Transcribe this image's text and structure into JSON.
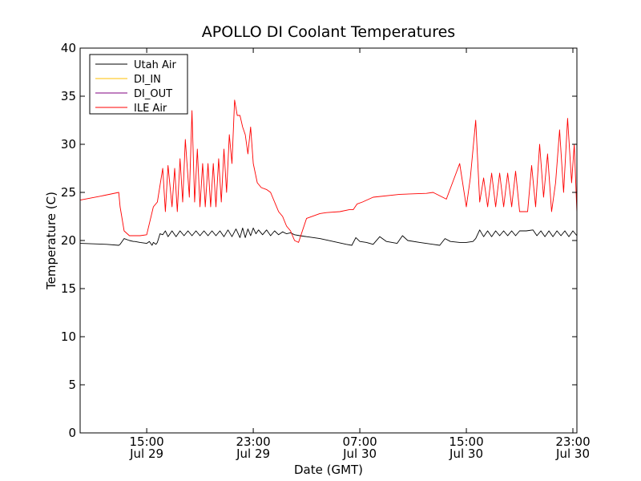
{
  "chart_data": {
    "type": "line",
    "title": "APOLLO DI Coolant Temperatures",
    "xlabel": "Date (GMT)",
    "ylabel": "Temperature (C)",
    "xunit": "hours since Jul 29 00:00 GMT",
    "xlim": [
      10.0,
      47.3
    ],
    "ylim": [
      0,
      40
    ],
    "yticks": [
      0,
      5,
      10,
      15,
      20,
      25,
      30,
      35,
      40
    ],
    "xticks": [
      {
        "value": 15,
        "time": "15:00",
        "date": "Jul 29"
      },
      {
        "value": 23,
        "time": "23:00",
        "date": "Jul 29"
      },
      {
        "value": 31,
        "time": "07:00",
        "date": "Jul 30"
      },
      {
        "value": 39,
        "time": "15:00",
        "date": "Jul 30"
      },
      {
        "value": 47,
        "time": "23:00",
        "date": "Jul 30"
      }
    ],
    "legend_position": "top-left",
    "series": [
      {
        "name": "Utah Air",
        "color": "#000000",
        "x": [
          10.0,
          12.0,
          12.9,
          13.0,
          13.3,
          13.7,
          14.0,
          14.1,
          14.5,
          15.0,
          15.2,
          15.4,
          15.5,
          15.7,
          15.8,
          16.0,
          16.2,
          16.4,
          16.6,
          16.9,
          17.2,
          17.5,
          17.8,
          18.1,
          18.4,
          18.7,
          19.0,
          19.3,
          19.6,
          19.9,
          20.2,
          20.5,
          20.8,
          21.1,
          21.4,
          21.7,
          22.0,
          22.2,
          22.4,
          22.6,
          22.8,
          23.0,
          23.2,
          23.4,
          23.7,
          24.0,
          24.3,
          24.6,
          24.9,
          25.2,
          25.5,
          25.8,
          26.1,
          26.5,
          27.0,
          28.0,
          29.0,
          30.0,
          30.4,
          30.7,
          31.0,
          31.5,
          32.0,
          32.5,
          33.0,
          33.8,
          34.2,
          34.6,
          35.5,
          36.5,
          37.0,
          37.4,
          37.8,
          38.5,
          39.0,
          39.5,
          39.7,
          40.0,
          40.3,
          40.6,
          40.9,
          41.2,
          41.5,
          41.8,
          42.1,
          42.4,
          42.7,
          43.0,
          43.5,
          44.0,
          44.3,
          44.6,
          44.9,
          45.2,
          45.5,
          45.8,
          46.1,
          46.4,
          46.7,
          47.0,
          47.3
        ],
        "y": [
          19.7,
          19.6,
          19.5,
          19.6,
          20.2,
          20.0,
          19.9,
          19.9,
          19.8,
          19.7,
          19.9,
          19.5,
          19.8,
          19.6,
          19.8,
          20.7,
          20.6,
          21.0,
          20.4,
          21.0,
          20.4,
          21.0,
          20.5,
          21.0,
          20.5,
          21.0,
          20.5,
          21.0,
          20.5,
          21.0,
          20.5,
          21.0,
          20.4,
          21.1,
          20.4,
          21.2,
          20.3,
          21.3,
          20.3,
          21.2,
          20.5,
          21.3,
          20.7,
          21.1,
          20.6,
          21.1,
          20.5,
          21.0,
          20.6,
          20.9,
          20.7,
          20.8,
          20.6,
          20.5,
          20.4,
          20.2,
          19.9,
          19.6,
          19.5,
          20.3,
          19.9,
          19.8,
          19.6,
          20.4,
          19.9,
          19.7,
          20.5,
          20.0,
          19.8,
          19.6,
          19.5,
          20.2,
          19.9,
          19.8,
          19.8,
          19.9,
          20.2,
          21.1,
          20.4,
          21.0,
          20.4,
          21.0,
          20.5,
          21.0,
          20.5,
          21.0,
          20.5,
          21.0,
          21.0,
          21.1,
          20.5,
          21.0,
          20.4,
          21.0,
          20.4,
          21.0,
          20.5,
          21.0,
          20.4,
          21.0,
          20.5
        ]
      },
      {
        "name": "DI_IN",
        "color": "#ffbf00",
        "x": [],
        "y": []
      },
      {
        "name": "DI_OUT",
        "color": "#800080",
        "x": [],
        "y": []
      },
      {
        "name": "ILE Air",
        "color": "#ff0000",
        "x": [
          10.0,
          11.5,
          12.9,
          13.0,
          13.3,
          13.7,
          14.5,
          15.0,
          15.5,
          15.8,
          16.2,
          16.4,
          16.6,
          16.9,
          17.1,
          17.3,
          17.5,
          17.7,
          17.9,
          18.2,
          18.4,
          18.6,
          18.8,
          19.0,
          19.2,
          19.4,
          19.6,
          19.8,
          20.0,
          20.2,
          20.4,
          20.6,
          20.8,
          21.0,
          21.2,
          21.4,
          21.6,
          21.8,
          22.0,
          22.2,
          22.4,
          22.6,
          22.8,
          23.0,
          23.3,
          23.6,
          24.0,
          24.3,
          24.6,
          24.9,
          25.2,
          25.5,
          25.8,
          26.1,
          26.4,
          27.0,
          28.0,
          28.5,
          29.5,
          30.2,
          30.5,
          30.8,
          31.2,
          32.0,
          34.0,
          36.0,
          36.5,
          37.5,
          38.5,
          39.0,
          39.3,
          39.7,
          40.0,
          40.3,
          40.6,
          40.9,
          41.2,
          41.5,
          41.8,
          42.1,
          42.4,
          42.7,
          43.0,
          43.3,
          43.6,
          43.9,
          44.2,
          44.5,
          44.8,
          45.1,
          45.4,
          45.7,
          46.0,
          46.3,
          46.6,
          46.9,
          47.1,
          47.3
        ],
        "y": [
          24.2,
          24.6,
          25.0,
          23.5,
          21.0,
          20.5,
          20.5,
          20.6,
          23.5,
          24.0,
          27.5,
          23.0,
          27.8,
          23.5,
          27.5,
          23.0,
          28.5,
          24.0,
          30.5,
          24.5,
          33.5,
          24.0,
          29.5,
          23.5,
          28.0,
          23.5,
          28.0,
          23.5,
          28.0,
          23.5,
          28.5,
          24.0,
          29.5,
          25.0,
          31.0,
          28.0,
          34.6,
          33.0,
          33.0,
          31.8,
          31.0,
          29.0,
          31.8,
          28.0,
          26.0,
          25.5,
          25.3,
          25.0,
          24.0,
          23.0,
          22.5,
          21.5,
          21.0,
          20.0,
          19.8,
          22.3,
          22.8,
          22.9,
          23.0,
          23.2,
          23.2,
          23.8,
          24.0,
          24.5,
          24.8,
          24.9,
          25.0,
          24.3,
          28.0,
          23.5,
          26.5,
          32.5,
          24.0,
          26.5,
          23.5,
          27.0,
          23.5,
          27.0,
          23.5,
          27.0,
          23.5,
          27.2,
          23.0,
          23.0,
          23.0,
          27.8,
          23.5,
          30.0,
          24.5,
          29.0,
          23.0,
          26.0,
          31.5,
          25.0,
          32.7,
          26.0,
          30.0,
          22.9
        ]
      }
    ]
  }
}
